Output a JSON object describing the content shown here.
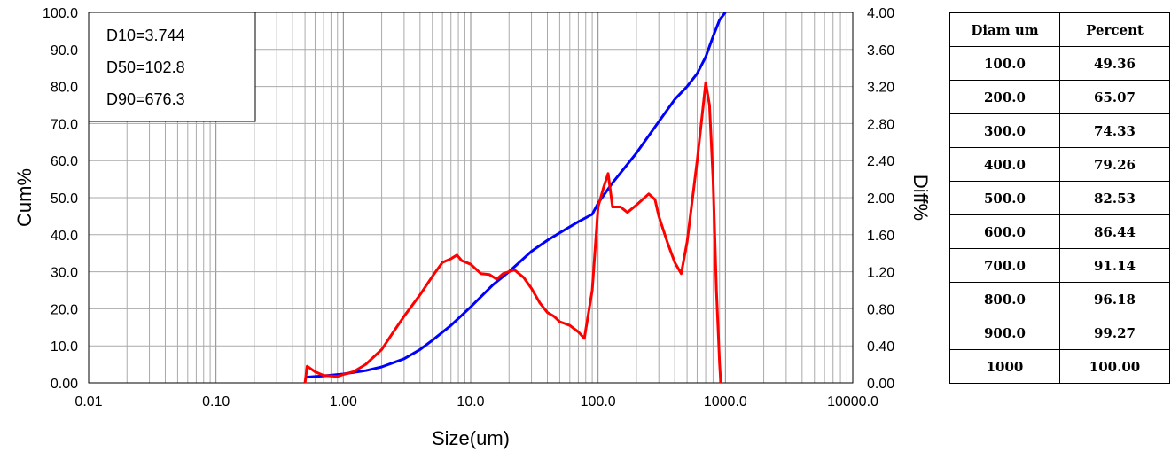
{
  "chart_data": {
    "type": "line",
    "x_scale": "log",
    "xlabel": "Size(um)",
    "ylabel_left": "Cum%",
    "ylabel_right": "Diff%",
    "xlim": [
      0.01,
      10000
    ],
    "ylim_left": [
      0,
      100
    ],
    "ylim_right": [
      0,
      4
    ],
    "x_tick_labels": [
      "0.01",
      "0.10",
      "1.00",
      "10.0",
      "100.0",
      "1000.0",
      "10000.0"
    ],
    "x_tick_values": [
      0.01,
      0.1,
      1,
      10,
      100,
      1000,
      10000
    ],
    "y_left_tick_labels": [
      "0.00",
      "10.0",
      "20.0",
      "30.0",
      "40.0",
      "50.0",
      "60.0",
      "70.0",
      "80.0",
      "90.0",
      "100.0"
    ],
    "y_right_tick_labels": [
      "0.00",
      "0.40",
      "0.80",
      "1.20",
      "1.60",
      "2.00",
      "2.40",
      "2.80",
      "3.20",
      "3.60",
      "4.00"
    ],
    "grid": true,
    "annotations": [
      "D10=3.744",
      "D50=102.8",
      "D90=676.3"
    ],
    "series": [
      {
        "axis": "left",
        "color": "#0000ff",
        "points": [
          [
            0.5,
            1.5
          ],
          [
            0.7,
            1.9
          ],
          [
            1.0,
            2.4
          ],
          [
            1.5,
            3.3
          ],
          [
            2.0,
            4.3
          ],
          [
            3.0,
            6.5
          ],
          [
            4.0,
            9.0
          ],
          [
            5.0,
            11.5
          ],
          [
            7.0,
            15.5
          ],
          [
            10.0,
            20.5
          ],
          [
            15.0,
            26.5
          ],
          [
            20.0,
            30.0
          ],
          [
            30.0,
            35.5
          ],
          [
            40.0,
            38.5
          ],
          [
            50.0,
            40.5
          ],
          [
            70.0,
            43.5
          ],
          [
            90.0,
            45.5
          ],
          [
            100.0,
            48.5
          ],
          [
            130.0,
            54.0
          ],
          [
            200.0,
            62.0
          ],
          [
            300.0,
            70.5
          ],
          [
            400.0,
            76.5
          ],
          [
            500.0,
            80.0
          ],
          [
            600.0,
            83.5
          ],
          [
            700.0,
            88.0
          ],
          [
            800.0,
            93.5
          ],
          [
            900.0,
            98.0
          ],
          [
            1000.0,
            100.0
          ]
        ]
      },
      {
        "axis": "right",
        "color": "#ff0000",
        "points": [
          [
            0.5,
            0.0
          ],
          [
            0.52,
            0.18
          ],
          [
            0.6,
            0.12
          ],
          [
            0.7,
            0.08
          ],
          [
            0.9,
            0.07
          ],
          [
            1.0,
            0.09
          ],
          [
            1.2,
            0.12
          ],
          [
            1.5,
            0.2
          ],
          [
            2.0,
            0.36
          ],
          [
            2.5,
            0.56
          ],
          [
            3.0,
            0.72
          ],
          [
            4.0,
            0.95
          ],
          [
            5.0,
            1.15
          ],
          [
            6.0,
            1.3
          ],
          [
            7.0,
            1.34
          ],
          [
            7.8,
            1.38
          ],
          [
            8.5,
            1.32
          ],
          [
            10.0,
            1.28
          ],
          [
            12.0,
            1.18
          ],
          [
            14.0,
            1.17
          ],
          [
            16.0,
            1.12
          ],
          [
            18.0,
            1.18
          ],
          [
            20.0,
            1.2
          ],
          [
            22.0,
            1.22
          ],
          [
            26.0,
            1.14
          ],
          [
            30.0,
            1.02
          ],
          [
            35.0,
            0.86
          ],
          [
            40.0,
            0.76
          ],
          [
            45.0,
            0.72
          ],
          [
            50.0,
            0.66
          ],
          [
            60.0,
            0.62
          ],
          [
            70.0,
            0.55
          ],
          [
            78.0,
            0.48
          ],
          [
            90.0,
            1.0
          ],
          [
            100.0,
            1.9
          ],
          [
            110.0,
            2.1
          ],
          [
            120.0,
            2.26
          ],
          [
            130.0,
            1.9
          ],
          [
            150.0,
            1.9
          ],
          [
            170.0,
            1.84
          ],
          [
            200.0,
            1.92
          ],
          [
            250.0,
            2.04
          ],
          [
            280.0,
            1.98
          ],
          [
            300.0,
            1.8
          ],
          [
            350.0,
            1.52
          ],
          [
            400.0,
            1.3
          ],
          [
            450.0,
            1.18
          ],
          [
            500.0,
            1.52
          ],
          [
            600.0,
            2.4
          ],
          [
            700.0,
            3.24
          ],
          [
            750.0,
            3.0
          ],
          [
            800.0,
            2.2
          ],
          [
            850.0,
            1.0
          ],
          [
            900.0,
            0.2
          ],
          [
            920.0,
            0.0
          ]
        ]
      }
    ]
  },
  "table": {
    "headers": [
      "Diam um",
      "Percent"
    ],
    "rows": [
      [
        "100.0",
        "49.36"
      ],
      [
        "200.0",
        "65.07"
      ],
      [
        "300.0",
        "74.33"
      ],
      [
        "400.0",
        "79.26"
      ],
      [
        "500.0",
        "82.53"
      ],
      [
        "600.0",
        "86.44"
      ],
      [
        "700.0",
        "91.14"
      ],
      [
        "800.0",
        "96.18"
      ],
      [
        "900.0",
        "99.27"
      ],
      [
        "1000",
        "100.00"
      ]
    ]
  }
}
